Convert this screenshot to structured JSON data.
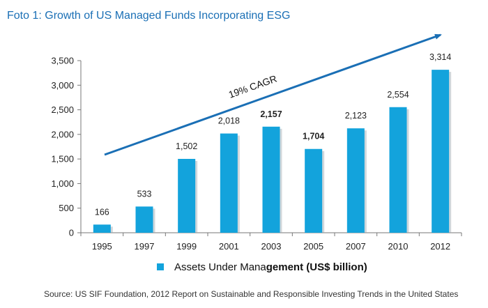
{
  "title": "Foto 1:  Growth of US Managed Funds Incorporating ESG",
  "source": "Source: US SIF Foundation, 2012 Report on Sustainable and Responsible Investing Trends in the United States",
  "chart_data": {
    "type": "bar",
    "categories": [
      "1995",
      "1997",
      "1999",
      "2001",
      "2003",
      "2005",
      "2007",
      "2010",
      "2012"
    ],
    "series": [
      {
        "name_plain": "Assets Under Mana",
        "name_bold": "gement (US$ billion)",
        "values": [
          166,
          533,
          1502,
          2018,
          2157,
          1704,
          2123,
          2554,
          3314
        ],
        "labels": [
          "166",
          "533",
          "1,502",
          "2,018",
          "2,157",
          "1,704",
          "2,123",
          "2,554",
          "3,314"
        ],
        "bold_labels": [
          false,
          false,
          false,
          false,
          true,
          true,
          false,
          false,
          false
        ],
        "color": "#13a3dc"
      }
    ],
    "ylim": [
      0,
      3500
    ],
    "yticks": [
      0,
      500,
      1000,
      1500,
      2000,
      2500,
      3000,
      3500
    ],
    "ytick_labels": [
      "0",
      "500",
      "1,000",
      "1,500",
      "2,000",
      "2,500",
      "3,000",
      "3,500"
    ],
    "legend_position": "bottom-center",
    "grid": false,
    "annotation": {
      "text": "19% CAGR",
      "arrow_color": "#1a6fb5"
    }
  }
}
